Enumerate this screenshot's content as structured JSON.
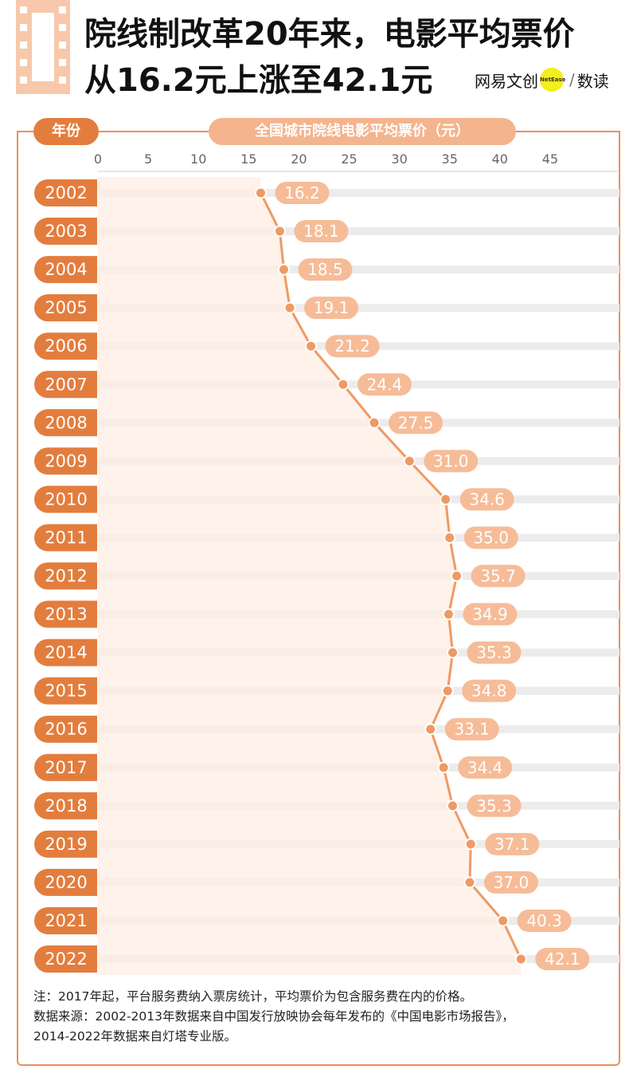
{
  "title": {
    "line1": "院线制改革20年来，电影平均票价",
    "line2": "从16.2元上涨至42.1元"
  },
  "logo": {
    "brand": "网易文创",
    "badge": "NetEase",
    "sep": "/",
    "product": "数读"
  },
  "headers": {
    "year": "年份",
    "axis": "全国城市院线电影平均票价（元）"
  },
  "colors": {
    "accent": "#e37d3e",
    "line": "#ee9a64",
    "label_fill": "#f6bc98",
    "area": "#fdeee4",
    "row_band": "#ececec"
  },
  "chart_data": {
    "type": "line",
    "orientation": "horizontal",
    "xlabel": "全国城市院线电影平均票价（元）",
    "ylabel": "年份",
    "x_ticks": [
      "0",
      "5",
      "10",
      "15",
      "20",
      "25",
      "30",
      "35",
      "40",
      "45"
    ],
    "xlim": [
      0,
      50
    ],
    "categories": [
      "2002",
      "2003",
      "2004",
      "2005",
      "2006",
      "2007",
      "2008",
      "2009",
      "2010",
      "2011",
      "2012",
      "2013",
      "2014",
      "2015",
      "2016",
      "2017",
      "2018",
      "2019",
      "2020",
      "2021",
      "2022"
    ],
    "values": [
      16.2,
      18.1,
      18.5,
      19.1,
      21.2,
      24.4,
      27.5,
      31.0,
      34.6,
      35.0,
      35.7,
      34.9,
      35.3,
      34.8,
      33.1,
      34.4,
      35.3,
      37.1,
      37.0,
      40.3,
      42.1
    ],
    "labels": [
      "16.2",
      "18.1",
      "18.5",
      "19.1",
      "21.2",
      "24.4",
      "27.5",
      "31.0",
      "34.6",
      "35.0",
      "35.7",
      "34.9",
      "35.3",
      "34.8",
      "33.1",
      "34.4",
      "35.3",
      "37.1",
      "37.0",
      "40.3",
      "42.1"
    ]
  },
  "notes": {
    "line1": "注：2017年起，平台服务费纳入票房统计，平均票价为包含服务费在内的价格。",
    "line2": "数据来源：2002-2013年数据来自中国发行放映协会每年发布的《中国电影市场报告》，",
    "line3": "2014-2022年数据来自灯塔专业版。"
  }
}
